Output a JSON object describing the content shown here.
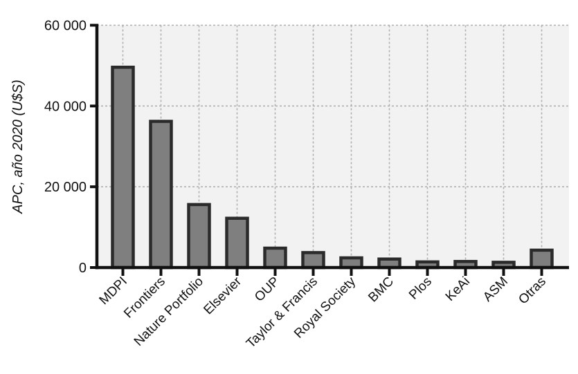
{
  "chart_data": {
    "type": "bar",
    "title": "",
    "xlabel": "",
    "ylabel": "APC, año 2020 (U$S)",
    "categories": [
      "MDPI",
      "Frontiers",
      "Nature Portfolio",
      "Elsevier",
      "OUP",
      "Taylor & Francis",
      "Royal Society",
      "BMC",
      "Plos",
      "KeAi",
      "ASM",
      "Otras"
    ],
    "values": [
      49600,
      36200,
      15600,
      12200,
      4800,
      3700,
      2400,
      2100,
      1400,
      1500,
      1300,
      4300
    ],
    "ylim": [
      0,
      60000
    ],
    "yticks": [
      {
        "value": 0,
        "label": "0"
      },
      {
        "value": 20000,
        "label": "20 000"
      },
      {
        "value": 40000,
        "label": "40 000"
      },
      {
        "value": 60000,
        "label": "60 000"
      }
    ],
    "grid": "dashed-horizontal-and-vertical",
    "legend": "none",
    "colors": {
      "bar_fill": "#7f7f7f",
      "bar_stroke": "#2b2b2b",
      "plot_background": "#f2f2f2",
      "gridline": "#b0b0b0",
      "axis": "#111111",
      "text": "#111111"
    }
  }
}
